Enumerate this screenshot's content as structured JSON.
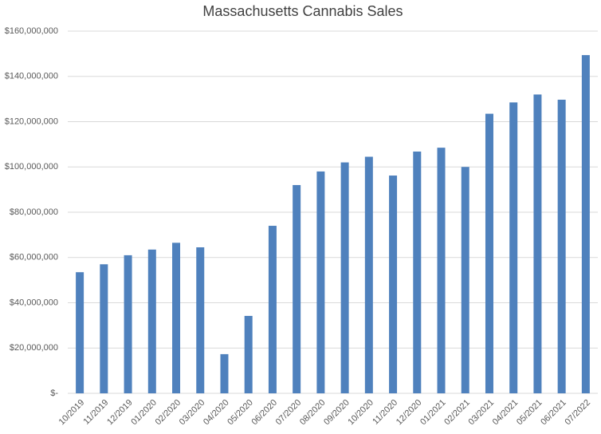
{
  "chart_data": {
    "type": "bar",
    "title": "Massachusetts Cannabis Sales",
    "categories": [
      "10/2019",
      "11/2019",
      "12/2019",
      "01/2020",
      "02/2020",
      "03/2020",
      "04/2020",
      "05/2020",
      "06/2020",
      "07/2020",
      "08/2020",
      "09/2020",
      "10/2020",
      "11/2020",
      "12/2020",
      "01/2021",
      "02/2021",
      "03/2021",
      "04/2021",
      "05/2021",
      "06/2021",
      "07/2022"
    ],
    "values": [
      53500000,
      57000000,
      61000000,
      63500000,
      66500000,
      64500000,
      17300000,
      34200000,
      74000000,
      92000000,
      98000000,
      102000000,
      104500000,
      96200000,
      106800000,
      108500000,
      100000000,
      123500000,
      128500000,
      132000000,
      129700000,
      149400000
    ],
    "color": "#4f81bd",
    "ylim": [
      0,
      160000000
    ],
    "yticks": [
      {
        "value": 0,
        "label": "$-"
      },
      {
        "value": 20000000,
        "label": "$20,000,000"
      },
      {
        "value": 40000000,
        "label": "$40,000,000"
      },
      {
        "value": 60000000,
        "label": "$60,000,000"
      },
      {
        "value": 80000000,
        "label": "$80,000,000"
      },
      {
        "value": 100000000,
        "label": "$100,000,000"
      },
      {
        "value": 120000000,
        "label": "$120,000,000"
      },
      {
        "value": 140000000,
        "label": "$140,000,000"
      },
      {
        "value": 160000000,
        "label": "$160,000,000"
      }
    ],
    "grid": true
  }
}
